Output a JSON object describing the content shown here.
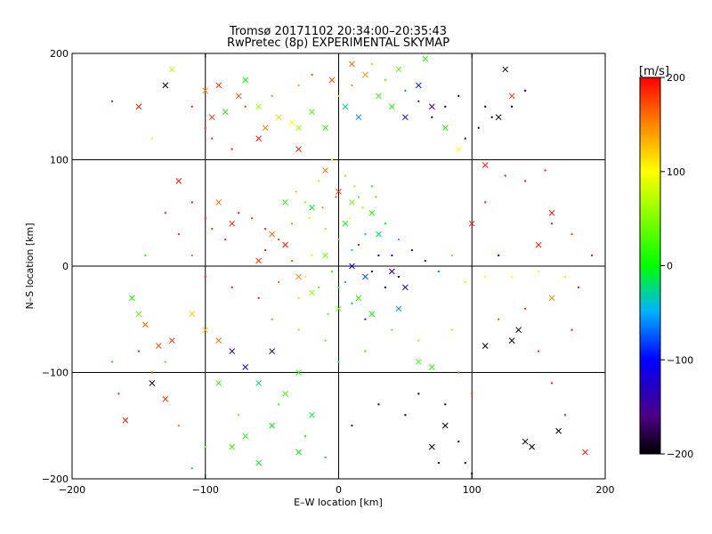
{
  "chart_data": {
    "type": "scatter",
    "title": "Tromsø 20171102 20:34:00–20:35:43",
    "subtitle": "RwPretec (8p) EXPERIMENTAL SKYMAP",
    "xlabel": "E–W location [km]",
    "ylabel": "N–S location [km]",
    "xlim": [
      -200,
      200
    ],
    "ylim": [
      -200,
      200
    ],
    "xticks": [
      "−200",
      "−100",
      "0",
      "100",
      "200"
    ],
    "yticks": [
      "−200",
      "−100",
      "0",
      "100",
      "200"
    ],
    "grid": true,
    "colorbar": {
      "label": "[m/s]",
      "range": [
        -200,
        200
      ],
      "ticks": [
        "200",
        "100",
        "0",
        "−100",
        "−200"
      ],
      "colors": [
        "#000000",
        "#4b0082",
        "#0000ff",
        "#00b4ff",
        "#00ff00",
        "#ffff00",
        "#ff8c00",
        "#ff0000"
      ]
    },
    "series": [
      {
        "marker": "x",
        "points": [
          [
            -125,
            185,
            70
          ],
          [
            -130,
            170,
            -200
          ],
          [
            -100,
            165,
            150
          ],
          [
            -90,
            170,
            180
          ],
          [
            -75,
            160,
            170
          ],
          [
            -70,
            175,
            0
          ],
          [
            -85,
            145,
            10
          ],
          [
            -95,
            140,
            180
          ],
          [
            -60,
            150,
            60
          ],
          [
            -55,
            130,
            150
          ],
          [
            -45,
            140,
            120
          ],
          [
            -35,
            135,
            100
          ],
          [
            -30,
            130,
            60
          ],
          [
            -20,
            145,
            30
          ],
          [
            -10,
            130,
            20
          ],
          [
            5,
            150,
            -20
          ],
          [
            15,
            140,
            -60
          ],
          [
            30,
            160,
            20
          ],
          [
            40,
            150,
            10
          ],
          [
            50,
            140,
            -120
          ],
          [
            60,
            170,
            -90
          ],
          [
            70,
            150,
            -150
          ],
          [
            80,
            130,
            10
          ],
          [
            90,
            110,
            100
          ],
          [
            20,
            180,
            140
          ],
          [
            10,
            190,
            160
          ],
          [
            -5,
            175,
            170
          ],
          [
            45,
            185,
            40
          ],
          [
            65,
            195,
            20
          ],
          [
            120,
            140,
            -200
          ],
          [
            -30,
            110,
            190
          ],
          [
            -60,
            120,
            190
          ],
          [
            -10,
            90,
            160
          ],
          [
            0,
            70,
            180
          ],
          [
            10,
            60,
            40
          ],
          [
            -20,
            55,
            -10
          ],
          [
            -40,
            60,
            10
          ],
          [
            5,
            40,
            0
          ],
          [
            25,
            50,
            10
          ],
          [
            30,
            30,
            -20
          ],
          [
            -150,
            150,
            190
          ],
          [
            -120,
            80,
            190
          ],
          [
            -90,
            60,
            160
          ],
          [
            -80,
            40,
            190
          ],
          [
            -50,
            30,
            160
          ],
          [
            -40,
            20,
            190
          ],
          [
            -60,
            5,
            180
          ],
          [
            -30,
            -10,
            150
          ],
          [
            -10,
            10,
            40
          ],
          [
            10,
            0,
            -120
          ],
          [
            20,
            -10,
            -80
          ],
          [
            40,
            -5,
            -150
          ],
          [
            50,
            -20,
            -130
          ],
          [
            15,
            -30,
            20
          ],
          [
            0,
            -40,
            40
          ],
          [
            -20,
            -25,
            60
          ],
          [
            25,
            -45,
            0
          ],
          [
            45,
            -40,
            -60
          ],
          [
            -100,
            -60,
            130
          ],
          [
            -90,
            -70,
            160
          ],
          [
            -80,
            -80,
            -150
          ],
          [
            -70,
            -95,
            -120
          ],
          [
            -60,
            -110,
            -20
          ],
          [
            -50,
            -80,
            -170
          ],
          [
            -90,
            -110,
            20
          ],
          [
            -40,
            -120,
            30
          ],
          [
            -30,
            -100,
            20
          ],
          [
            -20,
            -140,
            -10
          ],
          [
            -50,
            -150,
            0
          ],
          [
            -70,
            -160,
            10
          ],
          [
            -80,
            -170,
            20
          ],
          [
            -60,
            -185,
            -10
          ],
          [
            -30,
            -175,
            0
          ],
          [
            -140,
            -110,
            -200
          ],
          [
            -130,
            -125,
            180
          ],
          [
            -160,
            -145,
            190
          ],
          [
            -125,
            -70,
            180
          ],
          [
            -135,
            -75,
            170
          ],
          [
            -145,
            -55,
            160
          ],
          [
            -150,
            -45,
            40
          ],
          [
            -155,
            -30,
            10
          ],
          [
            -110,
            -45,
            120
          ],
          [
            60,
            -90,
            20
          ],
          [
            70,
            -95,
            10
          ],
          [
            80,
            -150,
            -200
          ],
          [
            70,
            -170,
            -190
          ],
          [
            135,
            -60,
            -200
          ],
          [
            130,
            -70,
            -200
          ],
          [
            110,
            -75,
            -200
          ],
          [
            140,
            -165,
            -200
          ],
          [
            145,
            -170,
            -200
          ],
          [
            165,
            -155,
            -200
          ],
          [
            160,
            -30,
            150
          ],
          [
            185,
            -175,
            190
          ],
          [
            130,
            160,
            180
          ],
          [
            125,
            185,
            -190
          ],
          [
            100,
            40,
            190
          ],
          [
            150,
            20,
            190
          ],
          [
            160,
            50,
            190
          ],
          [
            110,
            95,
            190
          ]
        ]
      },
      {
        "marker": "dot",
        "points": [
          [
            -110,
            150,
            190
          ],
          [
            -100,
            130,
            180
          ],
          [
            -95,
            120,
            190
          ],
          [
            -80,
            110,
            190
          ],
          [
            -70,
            150,
            180
          ],
          [
            -50,
            160,
            150
          ],
          [
            -30,
            170,
            140
          ],
          [
            -20,
            180,
            170
          ],
          [
            0,
            160,
            120
          ],
          [
            10,
            170,
            150
          ],
          [
            25,
            190,
            60
          ],
          [
            35,
            175,
            30
          ],
          [
            50,
            165,
            -60
          ],
          [
            60,
            155,
            -150
          ],
          [
            70,
            140,
            -190
          ],
          [
            80,
            150,
            -200
          ],
          [
            90,
            160,
            -200
          ],
          [
            110,
            150,
            -200
          ],
          [
            115,
            140,
            -200
          ],
          [
            130,
            150,
            -200
          ],
          [
            140,
            165,
            -200
          ],
          [
            105,
            130,
            -200
          ],
          [
            95,
            120,
            -180
          ],
          [
            -140,
            120,
            100
          ],
          [
            -110,
            60,
            190
          ],
          [
            -100,
            45,
            190
          ],
          [
            -95,
            35,
            180
          ],
          [
            -85,
            25,
            190
          ],
          [
            -75,
            50,
            190
          ],
          [
            -65,
            45,
            180
          ],
          [
            -55,
            35,
            190
          ],
          [
            -45,
            25,
            170
          ],
          [
            -35,
            40,
            150
          ],
          [
            -25,
            60,
            60
          ],
          [
            -15,
            80,
            70
          ],
          [
            -5,
            100,
            110
          ],
          [
            5,
            85,
            50
          ],
          [
            15,
            65,
            30
          ],
          [
            25,
            75,
            10
          ],
          [
            35,
            40,
            0
          ],
          [
            45,
            25,
            -40
          ],
          [
            55,
            15,
            -100
          ],
          [
            65,
            5,
            -150
          ],
          [
            75,
            -5,
            -60
          ],
          [
            85,
            10,
            40
          ],
          [
            95,
            -15,
            80
          ],
          [
            110,
            -10,
            100
          ],
          [
            130,
            -10,
            100
          ],
          [
            150,
            -5,
            100
          ],
          [
            170,
            -10,
            110
          ],
          [
            180,
            -20,
            190
          ],
          [
            190,
            10,
            190
          ],
          [
            175,
            30,
            180
          ],
          [
            160,
            40,
            190
          ],
          [
            120,
            -50,
            170
          ],
          [
            140,
            -40,
            190
          ],
          [
            150,
            -80,
            190
          ],
          [
            160,
            -110,
            190
          ],
          [
            170,
            -140,
            190
          ],
          [
            100,
            -120,
            180
          ],
          [
            90,
            -100,
            170
          ],
          [
            85,
            -60,
            120
          ],
          [
            60,
            -70,
            60
          ],
          [
            40,
            -60,
            30
          ],
          [
            20,
            -80,
            10
          ],
          [
            0,
            -90,
            -10
          ],
          [
            -10,
            -70,
            30
          ],
          [
            -30,
            -60,
            60
          ],
          [
            -50,
            -50,
            150
          ],
          [
            -60,
            -30,
            190
          ],
          [
            -80,
            -20,
            190
          ],
          [
            -100,
            -10,
            190
          ],
          [
            -110,
            10,
            160
          ],
          [
            -120,
            30,
            190
          ],
          [
            -130,
            50,
            190
          ],
          [
            -145,
            10,
            10
          ],
          [
            -170,
            -90,
            10
          ],
          [
            -165,
            -120,
            190
          ],
          [
            -120,
            -150,
            160
          ],
          [
            -110,
            -190,
            -10
          ],
          [
            -100,
            -170,
            30
          ],
          [
            -75,
            -140,
            40
          ],
          [
            -45,
            -130,
            20
          ],
          [
            -25,
            -160,
            0
          ],
          [
            -10,
            -180,
            -30
          ],
          [
            10,
            -150,
            -120
          ],
          [
            30,
            -130,
            -190
          ],
          [
            50,
            -140,
            -200
          ],
          [
            60,
            -120,
            -200
          ],
          [
            80,
            -130,
            -190
          ],
          [
            90,
            -165,
            -200
          ],
          [
            95,
            -185,
            -200
          ],
          [
            100,
            -195,
            -200
          ],
          [
            75,
            -185,
            -200
          ],
          [
            -5,
            -5,
            20
          ],
          [
            5,
            -15,
            -30
          ],
          [
            -15,
            -20,
            40
          ],
          [
            -25,
            -10,
            100
          ],
          [
            -35,
            5,
            170
          ],
          [
            15,
            20,
            -80
          ],
          [
            25,
            -5,
            -150
          ],
          [
            35,
            -20,
            -200
          ],
          [
            30,
            10,
            -100
          ],
          [
            20,
            30,
            -40
          ],
          [
            10,
            15,
            -10
          ],
          [
            0,
            25,
            20
          ],
          [
            -10,
            35,
            50
          ],
          [
            -20,
            10,
            80
          ],
          [
            -30,
            -30,
            120
          ],
          [
            0,
            -20,
            0
          ],
          [
            10,
            -35,
            -50
          ],
          [
            20,
            -50,
            -90
          ],
          [
            -8,
            -45,
            30
          ],
          [
            40,
            10,
            -170
          ],
          [
            45,
            -10,
            -190
          ],
          [
            -45,
            -15,
            160
          ],
          [
            -55,
            15,
            190
          ],
          [
            -12,
            55,
            150
          ],
          [
            8,
            45,
            90
          ],
          [
            18,
            55,
            60
          ],
          [
            -2,
            65,
            170
          ],
          [
            12,
            75,
            120
          ],
          [
            -22,
            45,
            110
          ],
          [
            -32,
            70,
            130
          ],
          [
            28,
            65,
            20
          ],
          [
            -170,
            155,
            190
          ],
          [
            -150,
            -80,
            190
          ],
          [
            -140,
            -100,
            180
          ],
          [
            -130,
            -90,
            20
          ],
          [
            120,
            10,
            -100
          ],
          [
            110,
            60,
            190
          ],
          [
            125,
            85,
            190
          ],
          [
            140,
            80,
            190
          ],
          [
            155,
            90,
            190
          ],
          [
            175,
            -60,
            190
          ]
        ]
      }
    ]
  }
}
